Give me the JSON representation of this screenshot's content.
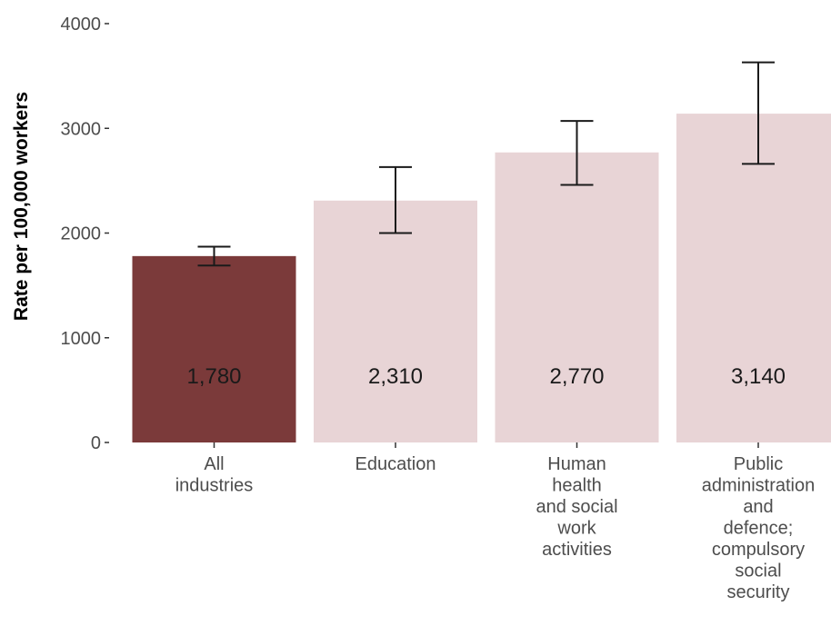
{
  "chart_data": {
    "type": "bar",
    "ylabel": "Rate per 100,000 workers",
    "ylim": [
      0,
      4000
    ],
    "yticks": [
      0,
      1000,
      2000,
      3000,
      4000
    ],
    "ytick_labels": [
      "0",
      "1000",
      "2000",
      "3000",
      "4000"
    ],
    "grid": false,
    "categories": [
      [
        "All",
        "industries"
      ],
      [
        "Education"
      ],
      [
        "Human",
        "health",
        "and social",
        "work",
        "activities"
      ],
      [
        "Public",
        "administration",
        "and",
        "defence;",
        "compulsory",
        "social",
        "security"
      ]
    ],
    "values": [
      1780,
      2310,
      2770,
      3140
    ],
    "value_labels": [
      "1,780",
      "2,310",
      "2,770",
      "3,140"
    ],
    "error_low": [
      1690,
      2000,
      2460,
      2660
    ],
    "error_high": [
      1870,
      2630,
      3070,
      3630
    ],
    "colors": [
      "#7b3a3a",
      "#e8d4d6",
      "#e8d4d6",
      "#e8d4d6"
    ],
    "errorbar_color": "#1a1a1a"
  }
}
